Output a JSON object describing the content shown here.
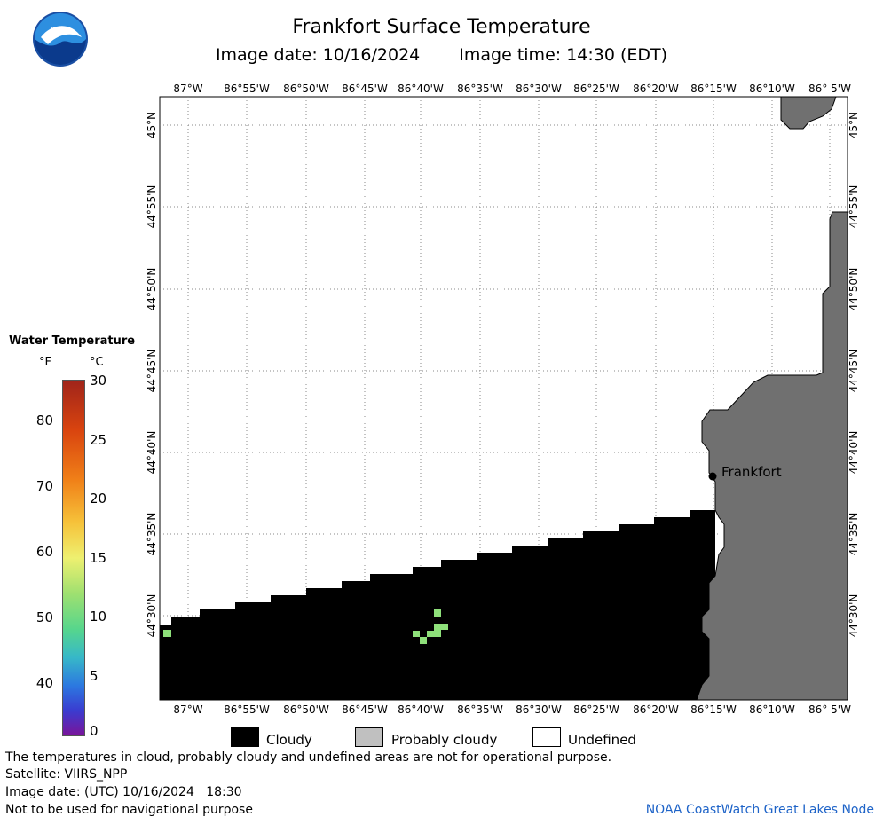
{
  "title": "Frankfort Surface Temperature",
  "image_date_label": "Image date: 10/16/2024",
  "image_time_label": "Image time: 14:30 (EDT)",
  "logo_text": "NOAA",
  "longitude_ticks": [
    "87°W",
    "86°55'W",
    "86°50'W",
    "86°45'W",
    "86°40'W",
    "86°35'W",
    "86°30'W",
    "86°25'W",
    "86°20'W",
    "86°15'W",
    "86°10'W",
    "86° 5'W"
  ],
  "latitude_ticks": [
    "45°N",
    "44°55'N",
    "44°50'N",
    "44°45'N",
    "44°40'N",
    "44°35'N",
    "44°30'N"
  ],
  "city": {
    "name": "Frankfort"
  },
  "water_temperature_legend": {
    "title": "Water Temperature",
    "unit_f": "°F",
    "unit_c": "°C",
    "f_ticks": [
      "80",
      "70",
      "60",
      "50",
      "40"
    ],
    "c_ticks": [
      "30",
      "25",
      "20",
      "15",
      "10",
      "5",
      "0"
    ]
  },
  "class_legend": [
    {
      "label": "Cloudy",
      "color": "#000000"
    },
    {
      "label": "Probably cloudy",
      "color": "#c0c0c0"
    },
    {
      "label": "Undefined",
      "color": "#ffffff"
    }
  ],
  "colors": {
    "land": "#707070",
    "cloud": "#000000",
    "warm_pixels": "#8ee07a",
    "credit": "#1f64c8"
  },
  "footer": {
    "disclaimer": "The temperatures in cloud, probably cloudy and undefined areas are not for operational purpose.",
    "satellite": "Satellite: VIIRS_NPP",
    "utc_date": "Image date: (UTC) 10/16/2024   18:30",
    "navigation": "Not to be used for navigational purpose",
    "credit": "NOAA CoastWatch Great Lakes Node"
  }
}
